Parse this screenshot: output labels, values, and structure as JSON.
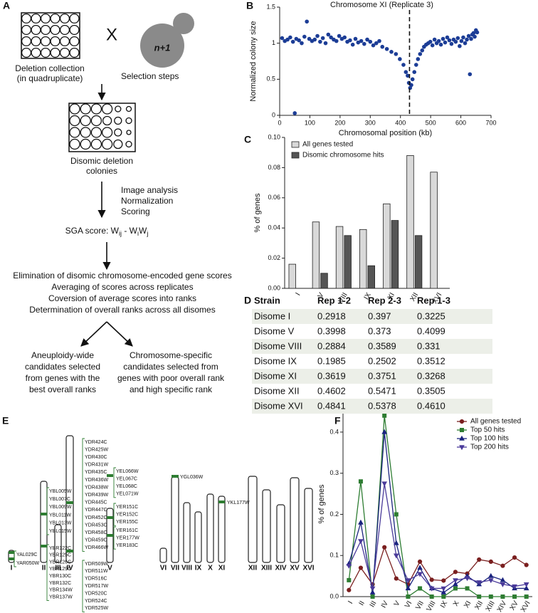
{
  "panel_labels": [
    "A",
    "B",
    "C",
    "D",
    "E",
    "F"
  ],
  "flow": {
    "cross": "X",
    "cell_label": "n+1",
    "collection": [
      "Deletion collection",
      "(in quadruplicate)"
    ],
    "selection": "Selection steps",
    "disomic": [
      "Disomic deletion",
      "colonies"
    ],
    "processing": [
      "Image analysis",
      "Normalization",
      "Scoring"
    ],
    "sga_score": [
      "SGA score: W",
      "ij",
      " - W",
      "i",
      "W",
      "j"
    ],
    "steps": [
      "Elimination of disomic chromosome-encoded gene scores",
      "Averaging of scores across replicates",
      "Coversion of average scores into ranks",
      "Determination of overall ranks across all disomes"
    ],
    "outcome_left": [
      "Aneuploidy-wide",
      "candidates selected",
      "from genes with the",
      "best overall ranks"
    ],
    "outcome_right": [
      "Chromosome-specific",
      "candidates selected from",
      "genes with poor overall rank",
      "and high specific rank"
    ]
  },
  "chart_data": [
    {
      "type": "scatter",
      "title": "Chromosome XI (Replicate 3)",
      "x_label": "Chromosomal position (kb)",
      "y_label": "Normalized colony size",
      "x": [
        8,
        17,
        26,
        35,
        44,
        50,
        55,
        64,
        73,
        82,
        90,
        98,
        107,
        116,
        125,
        134,
        143,
        152,
        161,
        170,
        179,
        188,
        197,
        206,
        215,
        224,
        233,
        242,
        251,
        260,
        270,
        280,
        290,
        300,
        310,
        320,
        330,
        340,
        355,
        370,
        385,
        398,
        410,
        418,
        424,
        428,
        432,
        436,
        440,
        446,
        452,
        458,
        465,
        472,
        478,
        485,
        492,
        499,
        506,
        513,
        520,
        527,
        534,
        541,
        548,
        555,
        562,
        569,
        576,
        583,
        590,
        596,
        602,
        608,
        614,
        620,
        626,
        630,
        634,
        638,
        642,
        646,
        650,
        654
      ],
      "values": [
        1.07,
        1.03,
        1.05,
        1.08,
        1.02,
        0.03,
        1.06,
        1.04,
        1.0,
        1.09,
        1.3,
        1.06,
        1.03,
        1.05,
        1.1,
        1.02,
        1.07,
        1.0,
        1.12,
        1.08,
        1.05,
        1.03,
        1.1,
        1.06,
        1.08,
        1.02,
        1.04,
        0.98,
        1.06,
        1.01,
        1.03,
        0.99,
        1.05,
        1.02,
        0.97,
        1.0,
        1.03,
        0.95,
        0.92,
        0.88,
        0.85,
        0.78,
        0.7,
        0.6,
        0.55,
        0.45,
        0.38,
        0.42,
        0.5,
        0.6,
        0.7,
        0.78,
        0.85,
        0.9,
        0.95,
        0.98,
        1.0,
        1.02,
        0.97,
        1.05,
        1.0,
        1.03,
        0.98,
        1.06,
        1.01,
        1.08,
        1.04,
        0.99,
        1.05,
        1.02,
        1.07,
        0.96,
        1.03,
        1.08,
        1.0,
        1.05,
        1.1,
        0.57,
        1.06,
        1.12,
        1.14,
        1.09,
        1.18,
        1.15
      ],
      "color": "#1c3d96",
      "xlim": [
        0,
        700
      ],
      "xticks": [
        0,
        100,
        200,
        300,
        400,
        500,
        600,
        700
      ],
      "ylim": [
        0,
        1.5
      ],
      "yticks": [
        0,
        0.5,
        1,
        1.5
      ],
      "reference_line": 430
    },
    {
      "type": "bar",
      "y_label": "% of genes",
      "categories": [
        "I",
        "V",
        "VIII",
        "IX",
        "XI",
        "XII",
        "XVI"
      ],
      "series": [
        {
          "name": "All genes tested",
          "color": "#d9d9d9",
          "values": [
            0.016,
            0.044,
            0.041,
            0.039,
            0.056,
            0.088,
            0.077
          ]
        },
        {
          "name": "Disomic chromosome hits",
          "color": "#555555",
          "values": [
            null,
            0.01,
            0.035,
            0.015,
            0.045,
            0.035,
            null
          ]
        }
      ],
      "ylim": [
        0,
        0.1
      ],
      "yticks": [
        {
          "value": 0,
          "label": "0.00"
        },
        0.02,
        0.04,
        0.06,
        0.08,
        {
          "value": 0.1,
          "label": "0.10"
        }
      ],
      "legend": "upper left"
    },
    {
      "type": "line",
      "y_label": "% of genes",
      "categories": [
        "I",
        "II",
        "III",
        "IV",
        "V",
        "VI",
        "VII",
        "VIII",
        "IX",
        "X",
        "XI",
        "XII",
        "XIII",
        "XIV",
        "XV",
        "XVI"
      ],
      "series": [
        {
          "name": "All genes tested",
          "color": "#7a1f1f",
          "marker": "circle",
          "values": [
            0.016,
            0.07,
            0.03,
            0.12,
            0.044,
            0.03,
            0.085,
            0.041,
            0.039,
            0.06,
            0.056,
            0.09,
            0.085,
            0.075,
            0.095,
            0.077
          ]
        },
        {
          "name": "Top 50 hits",
          "color": "#2e7d32",
          "marker": "square",
          "values": [
            0.04,
            0.28,
            0.0,
            0.44,
            0.2,
            0.0,
            0.02,
            0.0,
            0.0,
            0.02,
            0.02,
            0.0,
            0.0,
            0.0,
            0.0,
            0.0
          ]
        },
        {
          "name": "Top 100 hits",
          "color": "#1a237e",
          "marker": "triangle",
          "values": [
            0.08,
            0.18,
            0.01,
            0.4,
            0.13,
            0.02,
            0.07,
            0.02,
            0.01,
            0.03,
            0.05,
            0.03,
            0.05,
            0.04,
            0.02,
            0.02
          ]
        },
        {
          "name": "Top 200 hits",
          "color": "#4a3a9a",
          "marker": "triangle-down",
          "values": [
            0.075,
            0.135,
            0.02,
            0.275,
            0.1,
            0.04,
            0.055,
            0.02,
            0.02,
            0.04,
            0.045,
            0.035,
            0.04,
            0.03,
            0.025,
            0.03
          ]
        }
      ],
      "ylim": [
        0,
        0.45
      ],
      "yticks": [
        {
          "value": 0,
          "label": "0.0"
        },
        0.1,
        0.2,
        0.3,
        0.4
      ],
      "legend": "upper right"
    }
  ],
  "table": {
    "columns": [
      "Strain",
      "Rep 1-2",
      "Rep 2-3",
      "Rep 1-3"
    ],
    "rows": [
      [
        "Disome I",
        "0.2918",
        "0.397",
        "0.3225"
      ],
      [
        "Disome V",
        "0.3998",
        "0.373",
        "0.4099"
      ],
      [
        "Disome VIII",
        "0.2884",
        "0.3589",
        "0.331"
      ],
      [
        "Disome IX",
        "0.1985",
        "0.2502",
        "0.3512"
      ],
      [
        "Disome XI",
        "0.3619",
        "0.3751",
        "0.3268"
      ],
      [
        "Disome XII",
        "0.4602",
        "0.5471",
        "0.3505"
      ],
      [
        "Disome XVI",
        "0.4841",
        "0.5378",
        "0.4610"
      ]
    ]
  },
  "chromosomes": {
    "names": [
      "I",
      "II",
      "III",
      "IV",
      "V",
      "VI",
      "VII",
      "VIII",
      "IX",
      "X",
      "XI",
      "XII",
      "XIII",
      "XIV",
      "XV",
      "XVI"
    ],
    "genes": {
      "I": [
        [
          "YAL029C",
          "YAR050W"
        ]
      ],
      "II": [
        [
          "YBL005W",
          "YBL007C",
          "YBL009W",
          "YBL011W",
          "YBL013W",
          "YBL015W"
        ],
        [
          "YBR122C",
          "YBR125C",
          "YBR126C",
          "YBR129C",
          "YBR130C",
          "YBR132C",
          "YBR134W",
          "YBR137W"
        ]
      ],
      "IV": [
        [
          "YDR424C",
          "YDR425W",
          "YDR430C",
          "YDR431W",
          "YDR435C",
          "YDR436W",
          "YDR438W",
          "YDR439W",
          "YDR445C",
          "YDR447C",
          "YDR452C",
          "YDR453C",
          "YDR458C",
          "YDR459C",
          "YDR466W"
        ],
        [
          "YDR509W",
          "YDR511W",
          "YDR516C",
          "YDR517W",
          "YDR520C",
          "YDR524C",
          "YDR525W"
        ]
      ],
      "V": [
        [
          "YEL066W",
          "YEL067C",
          "YEL068C",
          "YEL071W"
        ],
        [
          "YER151C",
          "YER152C",
          "YER155C"
        ],
        [
          "YER161C",
          "YER177W",
          "YER183C"
        ]
      ],
      "VII": [
        [
          "YGL036W"
        ]
      ],
      "XI": [
        [
          "YKL177W"
        ]
      ]
    }
  }
}
